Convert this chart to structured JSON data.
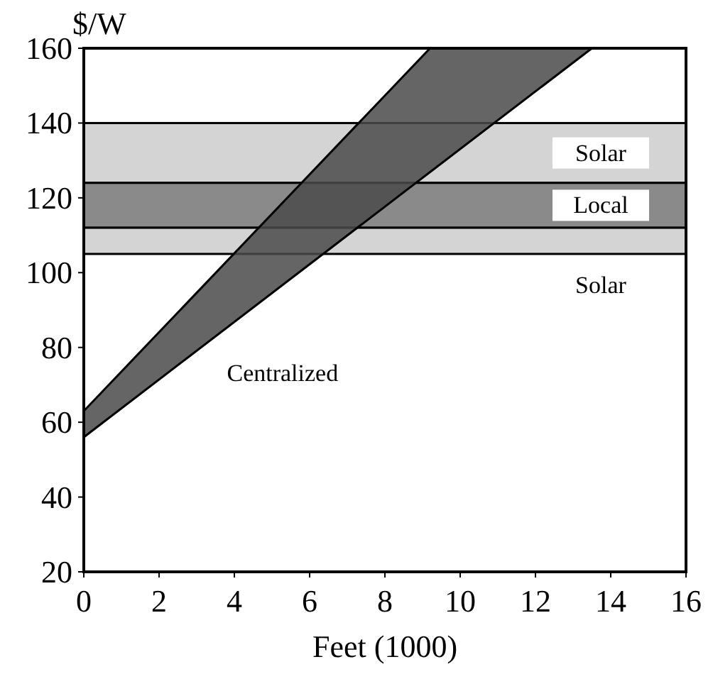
{
  "chart_data": {
    "type": "area",
    "ylabel": "$/W",
    "xlabel": "Feet (1000)",
    "xlim": [
      0,
      16
    ],
    "xticks": [
      0,
      2,
      4,
      6,
      8,
      10,
      12,
      14,
      16
    ],
    "ylim": [
      20,
      160
    ],
    "yticks": [
      20,
      40,
      60,
      80,
      100,
      120,
      140,
      160
    ],
    "grid": false,
    "bands": [
      {
        "axis": "y",
        "from": 124,
        "to": 140,
        "label": "Solar",
        "color": "#d4d4d4"
      },
      {
        "axis": "y",
        "from": 112,
        "to": 124,
        "label": "Local",
        "color": "#8a8a8a"
      },
      {
        "axis": "y",
        "from": 105,
        "to": 112,
        "label": "Solar",
        "color": "#d4d4d4"
      }
    ],
    "series": [
      {
        "color": "#4a4a4a",
        "x": [
          0,
          9.2,
          13.5
        ],
        "values": [
          null,
          null,
          null
        ],
        "upper": [
          63,
          160,
          160
        ],
        "lower": [
          56,
          126.9,
          160
        ]
      }
    ],
    "annotations": [
      "Centralized"
    ]
  }
}
